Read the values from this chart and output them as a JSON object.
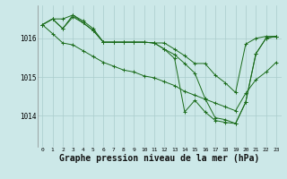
{
  "background_color": "#cce8e8",
  "plot_bg_color": "#cce8e8",
  "grid_color": "#aacccc",
  "line_color": "#1a6b1a",
  "xlabel": "Graphe pression niveau de la mer (hPa)",
  "xlabel_fontsize": 7,
  "ylabel_ticks": [
    1014,
    1015,
    1016
  ],
  "xlim": [
    -0.5,
    23.5
  ],
  "ylim": [
    1013.2,
    1016.85
  ],
  "xtick_labels": [
    "0",
    "1",
    "2",
    "3",
    "4",
    "5",
    "6",
    "7",
    "8",
    "9",
    "10",
    "11",
    "12",
    "13",
    "14",
    "15",
    "16",
    "17",
    "18",
    "19",
    "20",
    "21",
    "22",
    "23"
  ],
  "series": [
    [
      1016.35,
      1016.5,
      1016.5,
      1016.6,
      1016.45,
      1016.25,
      1015.9,
      1015.9,
      1015.9,
      1015.9,
      1015.9,
      1015.88,
      1015.88,
      1015.72,
      1015.55,
      1015.35,
      1015.35,
      1015.05,
      1014.85,
      1014.6,
      1015.85,
      1016.0,
      1016.05,
      1016.05
    ],
    [
      1016.35,
      1016.5,
      1016.25,
      1016.6,
      1016.4,
      1016.2,
      1015.9,
      1015.9,
      1015.9,
      1015.9,
      1015.9,
      1015.88,
      1015.72,
      1015.58,
      1015.35,
      1015.1,
      1014.45,
      1013.95,
      1013.9,
      1013.8,
      1014.35,
      1015.6,
      1016.0,
      1016.05
    ],
    [
      1016.35,
      1016.5,
      1016.25,
      1016.55,
      1016.4,
      1016.2,
      1015.9,
      1015.9,
      1015.9,
      1015.9,
      1015.9,
      1015.88,
      1015.72,
      1015.48,
      1014.1,
      1014.4,
      1014.1,
      1013.88,
      1013.83,
      1013.8,
      1014.35,
      1015.6,
      1016.0,
      1016.05
    ],
    [
      1016.35,
      1016.12,
      1015.88,
      1015.83,
      1015.68,
      1015.53,
      1015.38,
      1015.28,
      1015.18,
      1015.13,
      1015.03,
      1014.98,
      1014.88,
      1014.78,
      1014.63,
      1014.53,
      1014.43,
      1014.33,
      1014.23,
      1014.13,
      1014.58,
      1014.93,
      1015.13,
      1015.38
    ]
  ]
}
